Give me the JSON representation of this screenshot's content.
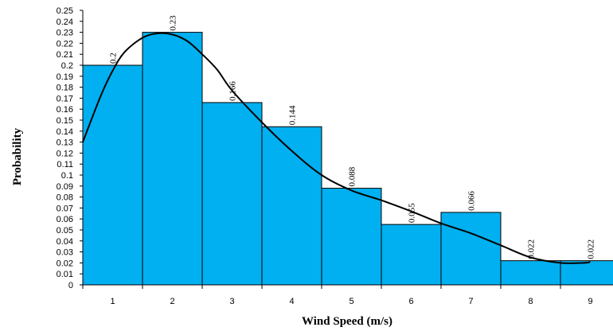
{
  "chart_data": {
    "type": "bar",
    "title": "",
    "xlabel": "Wind Speed (m/s)",
    "ylabel": "Probability",
    "categories": [
      "1",
      "2",
      "3",
      "4",
      "5",
      "6",
      "7",
      "8",
      "9"
    ],
    "values": [
      0.2,
      0.23,
      0.166,
      0.144,
      0.088,
      0.055,
      0.066,
      0.022,
      0.022
    ],
    "data_labels": [
      "0.2",
      "0.23",
      "0.166",
      "0.144",
      "0.088",
      "0.055",
      "0.066",
      "0.022",
      "0.022"
    ],
    "ylim": [
      0,
      0.25
    ],
    "y_ticks": [
      "0",
      "0.01",
      "0.02",
      "0.03",
      "0.04",
      "0.05",
      "0.06",
      "0.07",
      "0.08",
      "0.09",
      "0.1",
      "0.11",
      "0.12",
      "0.13",
      "0.14",
      "0.15",
      "0.16",
      "0.17",
      "0.18",
      "0.19",
      "0.2",
      "0.21",
      "0.22",
      "0.23",
      "0.24",
      "0.25"
    ],
    "grid": false,
    "legend": "none",
    "bar_color": "#00B0F0",
    "fit_curve": {
      "type": "line",
      "color": "#000000",
      "points": [
        [
          0.5,
          0.13
        ],
        [
          0.8,
          0.172
        ],
        [
          1.0,
          0.195
        ],
        [
          1.2,
          0.212
        ],
        [
          1.5,
          0.225
        ],
        [
          1.75,
          0.229
        ],
        [
          2.0,
          0.228
        ],
        [
          2.25,
          0.222
        ],
        [
          2.5,
          0.21
        ],
        [
          2.75,
          0.196
        ],
        [
          3.0,
          0.177
        ],
        [
          3.5,
          0.148
        ],
        [
          4.0,
          0.122
        ],
        [
          4.5,
          0.1
        ],
        [
          5.0,
          0.086
        ],
        [
          5.5,
          0.077
        ],
        [
          6.0,
          0.067
        ],
        [
          6.5,
          0.056
        ],
        [
          7.0,
          0.047
        ],
        [
          7.5,
          0.036
        ],
        [
          8.0,
          0.025
        ],
        [
          8.5,
          0.02
        ],
        [
          8.9,
          0.02
        ],
        [
          9.0,
          0.021
        ]
      ]
    }
  }
}
